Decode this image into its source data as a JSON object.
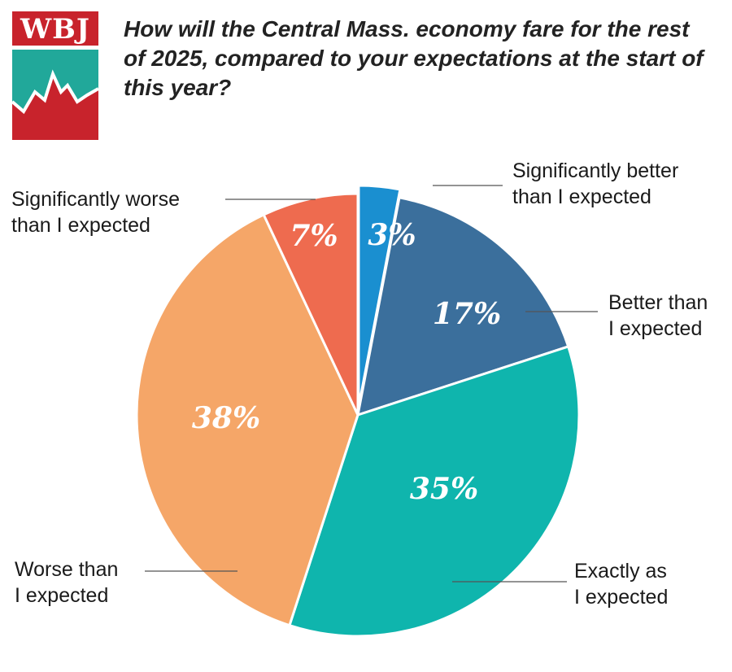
{
  "logo": {
    "text": "WBJ",
    "top_color": "#c8232c",
    "teal_color": "#21a89a",
    "red_color": "#c8232c"
  },
  "question": "How will the Central Mass. economy fare for the rest of 2025, compared to your expectations at the start of this year?",
  "chart_data": {
    "type": "pie",
    "title": "How will the Central Mass. economy fare for the rest of 2025, compared to your expectations at the start of this year?",
    "slices": [
      {
        "label_lines": [
          "Significantly better",
          "than I expected"
        ],
        "value": 3,
        "value_label": "3%",
        "color": "#1a8fd0",
        "exploded": true
      },
      {
        "label_lines": [
          "Better than",
          "I expected"
        ],
        "value": 17,
        "value_label": "17%",
        "color": "#3b6f9c",
        "exploded": false
      },
      {
        "label_lines": [
          "Exactly as",
          "I expected"
        ],
        "value": 35,
        "value_label": "35%",
        "color": "#0fb5ad",
        "exploded": false
      },
      {
        "label_lines": [
          "Worse than",
          "I expected"
        ],
        "value": 38,
        "value_label": "38%",
        "color": "#f5a668",
        "exploded": false
      },
      {
        "label_lines": [
          "Significantly worse",
          "than I expected"
        ],
        "value": 7,
        "value_label": "7%",
        "color": "#ee6b4f",
        "exploded": false
      }
    ],
    "start": "12 o'clock",
    "direction": "clockwise"
  }
}
